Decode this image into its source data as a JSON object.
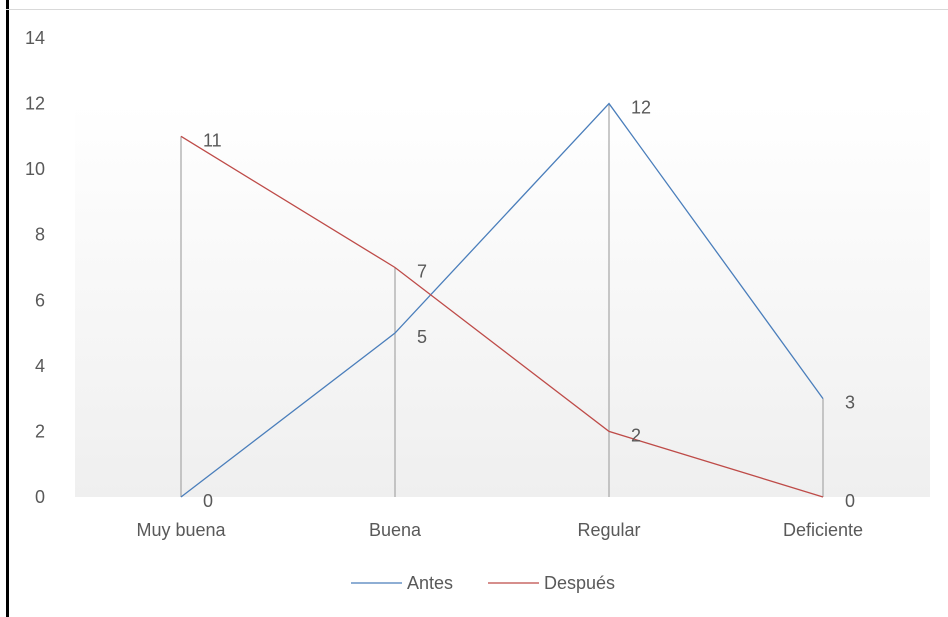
{
  "chart_data": {
    "type": "line",
    "categories": [
      "Muy buena",
      "Buena",
      "Regular",
      "Deficiente"
    ],
    "series": [
      {
        "name": "Antes",
        "values": [
          0,
          5,
          12,
          3
        ],
        "color": "#4a7ebb"
      },
      {
        "name": "Después",
        "values": [
          11,
          7,
          2,
          0
        ],
        "color": "#be4b48"
      }
    ],
    "ylim": [
      0,
      14
    ],
    "yticks": [
      0,
      2,
      4,
      6,
      8,
      10,
      12,
      14
    ],
    "data_labels": true,
    "drop_lines": true,
    "legend_position": "bottom",
    "colors": {
      "text": "#595959",
      "drop_line": "#a6a6a6",
      "plot_gradient_top": "#ffffff",
      "plot_gradient_bottom": "#efefef"
    }
  }
}
